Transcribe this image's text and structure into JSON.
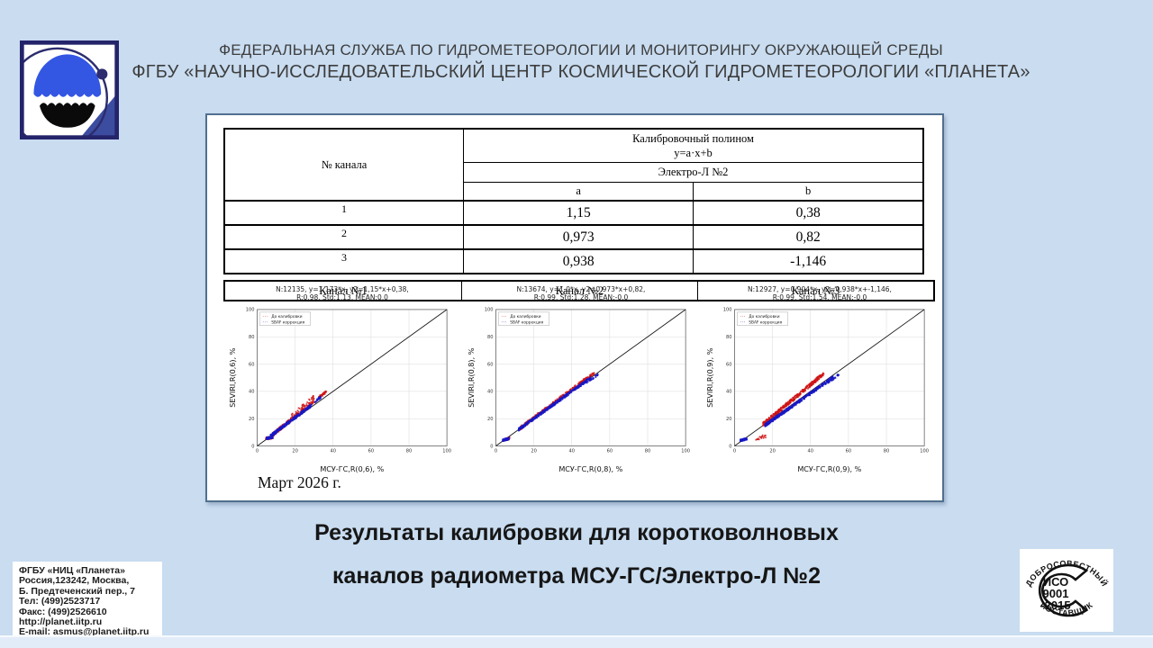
{
  "colors": {
    "background": "#c9dcf0",
    "panel_border": "#51708f",
    "series_before": "#cf1414",
    "series_after": "#1717c4",
    "logo_blue": "#3356e3",
    "logo_navy": "#24246b"
  },
  "header": {
    "line1": "ФЕДЕРАЛЬНАЯ СЛУЖБА ПО ГИДРОМЕТЕОРОЛОГИИ И МОНИТОРИНГУ ОКРУЖАЮЩЕЙ СРЕДЫ",
    "line2": "ФГБУ «НАУЧНО-ИССЛЕДОВАТЕЛЬСКИЙ ЦЕНТР КОСМИЧЕСКОЙ ГИДРОМЕТЕОРОЛОГИИ «ПЛАНЕТА»"
  },
  "table": {
    "col1_header": "№ канала",
    "poly_header_line1": "Калибровочный полином",
    "poly_header_line2": "y=a·x+b",
    "satellite": "Электро-Л №2",
    "a_label": "a",
    "b_label": "b",
    "rows": [
      {
        "ch": "1",
        "a": "1,15",
        "b": "0,38"
      },
      {
        "ch": "2",
        "a": "0,973",
        "b": "0,82"
      },
      {
        "ch": "3",
        "a": "0,938",
        "b": "-1,146"
      }
    ],
    "channels": [
      "Канал №1",
      "Канал №2",
      "Канал №3"
    ]
  },
  "date_label": "Март 2026 г.",
  "title": {
    "line1": "Результаты калибровки для коротковолновых",
    "line2": "каналов радиометра МСУ-ГС/Электро-Л №2"
  },
  "contact": {
    "lines": [
      "ФГБУ «НИЦ «Планета»",
      "Россия,123242, Москва,",
      "Б. Предтеченский пер., 7",
      "Тел:   (499)2523717",
      "Факс: (499)2526610",
      "http://planet.iitp.ru",
      "E-mail: asmus@planet.iitp.ru"
    ]
  },
  "stamp": {
    "top": "ДОБРОСОВЕСТНЫЙ",
    "bottom": "ПОСТАВЩИК",
    "line1": "ИСО",
    "line2": "9001",
    "line3": "-2015"
  },
  "chart_data": [
    {
      "type": "scatter",
      "title_line1": "N:12135, y=1,173*x, y2=1,15*x+0,38,",
      "title_line2": "R:0,98, Std:1,13, MEAN:0,0",
      "xlabel": "МСУ-ГС,R(0,6), %",
      "ylabel": "SEVIRI,R(0,6), %",
      "xlim": [
        0,
        100
      ],
      "ylim": [
        0,
        100
      ],
      "ticks": [
        0,
        20,
        40,
        60,
        80,
        100
      ],
      "grid": true,
      "diagonal": true,
      "legend": [
        {
          "label": "До калибровки",
          "color": "#cf1414"
        },
        {
          "label": "SBAF коррекция",
          "color": "#1717c4"
        }
      ],
      "clusters": [
        {
          "series": 0,
          "n": 240,
          "x": [
            8,
            30
          ],
          "slope": 1.12,
          "intercept": -0.8,
          "jitter": 1.4,
          "skew": 1.4
        },
        {
          "series": 0,
          "n": 40,
          "x": [
            18,
            30
          ],
          "slope": 1.2,
          "intercept": 0,
          "jitter": 1.8,
          "skew": 1
        },
        {
          "series": 0,
          "n": 45,
          "x": [
            32.5,
            36.5
          ],
          "slope": 1.05,
          "intercept": 1.5,
          "jitter": 0.9,
          "skew": 1
        },
        {
          "series": 0,
          "n": 35,
          "x": [
            4.5,
            8.5
          ],
          "slope": 0.3,
          "intercept": 4,
          "jitter": 1.0,
          "skew": 1
        },
        {
          "series": 1,
          "n": 320,
          "x": [
            7,
            29
          ],
          "slope": 1.04,
          "intercept": 0,
          "jitter": 1.1,
          "skew": 1.4
        },
        {
          "series": 1,
          "n": 30,
          "x": [
            30.5,
            33.5
          ],
          "slope": 1.05,
          "intercept": 0.5,
          "jitter": 0.8,
          "skew": 1
        },
        {
          "series": 1,
          "n": 90,
          "x": [
            4.8,
            8.2
          ],
          "slope": 0.3,
          "intercept": 4,
          "jitter": 0.8,
          "skew": 1
        }
      ]
    },
    {
      "type": "scatter",
      "title_line1": "N:13674, y=1,0*x, y2=0,973*x+0,82,",
      "title_line2": "R:0,99, Std:1,28, MEAN:-0,0",
      "xlabel": "МСУ-ГС,R(0,8), %",
      "ylabel": "SEVIRI,R(0,8), %",
      "xlim": [
        0,
        100
      ],
      "ylim": [
        0,
        100
      ],
      "ticks": [
        0,
        20,
        40,
        60,
        80,
        100
      ],
      "grid": true,
      "diagonal": true,
      "legend": [
        {
          "label": "До калибровки",
          "color": "#cf1414"
        },
        {
          "label": "SBAF коррекция",
          "color": "#1717c4"
        }
      ],
      "clusters": [
        {
          "series": 0,
          "n": 360,
          "x": [
            13,
            48
          ],
          "slope": 1.04,
          "intercept": -0.3,
          "jitter": 1.3,
          "skew": 1.2
        },
        {
          "series": 0,
          "n": 40,
          "x": [
            46,
            52
          ],
          "slope": 1.02,
          "intercept": 0.5,
          "jitter": 1.0,
          "skew": 1
        },
        {
          "series": 0,
          "n": 30,
          "x": [
            4,
            7.5
          ],
          "slope": 0.35,
          "intercept": 3,
          "jitter": 1.0,
          "skew": 1
        },
        {
          "series": 1,
          "n": 460,
          "x": [
            12,
            50
          ],
          "slope": 1.0,
          "intercept": 0,
          "jitter": 1.0,
          "skew": 1.2
        },
        {
          "series": 1,
          "n": 30,
          "x": [
            48,
            54
          ],
          "slope": 0.97,
          "intercept": 0,
          "jitter": 0.8,
          "skew": 1
        },
        {
          "series": 1,
          "n": 85,
          "x": [
            3.5,
            7
          ],
          "slope": 0.35,
          "intercept": 3,
          "jitter": 0.8,
          "skew": 1
        }
      ]
    },
    {
      "type": "scatter",
      "title_line1": "N:12927, y=0,904*x, y2=0,938*x+-1,146,",
      "title_line2": "R:0,99, Std:1,54, MEAN:-0,0",
      "xlabel": "МСУ-ГС,R(0,9), %",
      "ylabel": "SEVIRI,R(0,9), %",
      "xlim": [
        0,
        100
      ],
      "ylim": [
        0,
        100
      ],
      "ticks": [
        0,
        20,
        40,
        60,
        80,
        100
      ],
      "grid": true,
      "diagonal": true,
      "legend": [
        {
          "label": "До калибровки",
          "color": "#cf1414"
        },
        {
          "label": "SBAF коррекция",
          "color": "#1717c4"
        }
      ],
      "clusters": [
        {
          "series": 0,
          "n": 360,
          "x": [
            15,
            44
          ],
          "slope": 1.16,
          "intercept": -1.5,
          "jitter": 1.4,
          "skew": 1.2
        },
        {
          "series": 0,
          "n": 45,
          "x": [
            42,
            47
          ],
          "slope": 1.15,
          "intercept": -1,
          "jitter": 1.2,
          "skew": 1
        },
        {
          "series": 0,
          "n": 18,
          "x": [
            11,
            17
          ],
          "slope": 0.35,
          "intercept": 1.5,
          "jitter": 1.3,
          "skew": 1
        },
        {
          "series": 1,
          "n": 460,
          "x": [
            16,
            52
          ],
          "slope": 0.98,
          "intercept": -0.6,
          "jitter": 1.1,
          "skew": 1.2
        },
        {
          "series": 1,
          "n": 30,
          "x": [
            49,
            55
          ],
          "slope": 0.95,
          "intercept": 0,
          "jitter": 0.9,
          "skew": 1
        },
        {
          "series": 1,
          "n": 80,
          "x": [
            3,
            6.5
          ],
          "slope": 0.35,
          "intercept": 3,
          "jitter": 0.8,
          "skew": 1
        }
      ]
    }
  ]
}
